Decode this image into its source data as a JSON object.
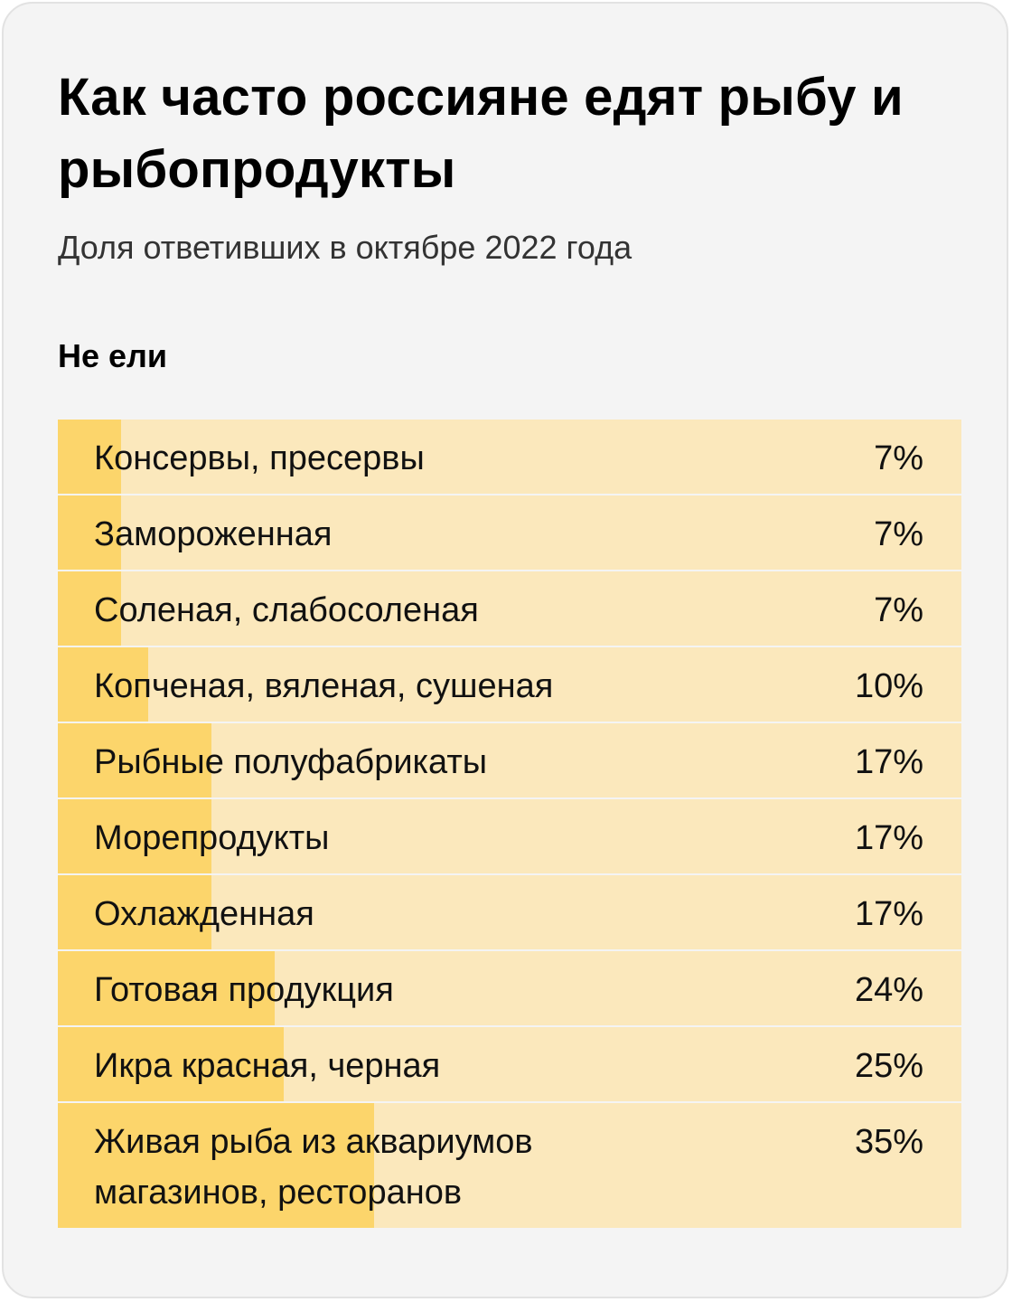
{
  "title": "Как часто россияне едят рыбу и рыбопродукты",
  "subtitle": "Доля ответивших в октябре 2022 года",
  "section_label": "Не ели",
  "colors": {
    "background": "#f4f4f4",
    "bar_track": "#fbe8bc",
    "bar_fill": "#fcd56b",
    "text": "#111111"
  },
  "chart_data": {
    "type": "bar",
    "orientation": "horizontal",
    "title": "Как часто россияне едят рыбу и рыбопродукты",
    "subtitle": "Доля ответивших в октябре 2022 года",
    "group": "Не ели",
    "unit": "%",
    "xlim": [
      0,
      100
    ],
    "categories": [
      "Консервы, пресервы",
      "Замороженная",
      "Соленая, слабосоленая",
      "Копченая, вяленая, сушеная",
      "Рыбные полуфабрикаты",
      "Морепродукты",
      "Охлажденная",
      "Готовая продукция",
      "Икра красная, черная",
      "Живая рыба из аквариумов\nмагазинов, ресторанов"
    ],
    "values": [
      7,
      7,
      7,
      10,
      17,
      17,
      17,
      24,
      25,
      35
    ],
    "value_labels": [
      "7%",
      "7%",
      "7%",
      "10%",
      "17%",
      "17%",
      "17%",
      "24%",
      "25%",
      "35%"
    ]
  }
}
